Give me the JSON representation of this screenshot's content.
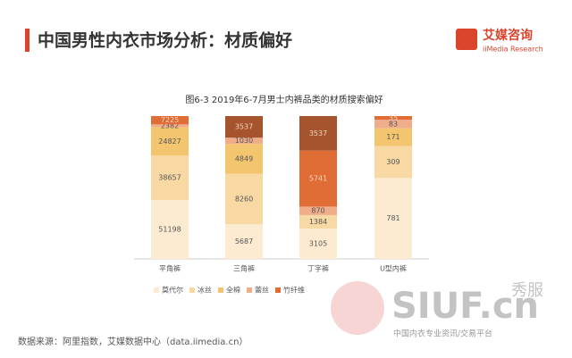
{
  "chart_data": {
    "type": "stacked_bar_percent",
    "header": "中国男性内衣市场分析：材质偏好",
    "logo": {
      "name": "艾媒咨询",
      "sub": "iiMedia Research"
    },
    "title": "图6-3 2019年6-7月男士内裤品类的材质搜索偏好",
    "categories": [
      "平角裤",
      "三角裤",
      "丁字裤",
      "U型内裤"
    ],
    "series": [
      {
        "name": "莫代尔",
        "color": "#fcebd0",
        "values": [
          51198,
          5687,
          3105,
          781
        ]
      },
      {
        "name": "冰丝",
        "color": "#f8d9a4",
        "values": [
          38657,
          8260,
          1384,
          309
        ]
      },
      {
        "name": "全棉",
        "color": "#f4c56f",
        "values": [
          24827,
          4849,
          null,
          171
        ]
      },
      {
        "name": "蕾丝",
        "color": "#f0ad8a",
        "values": [
          2382,
          1030,
          870,
          83
        ]
      },
      {
        "name": "竹纤维",
        "color": "#df6d35",
        "values": [
          7225,
          null,
          5741,
          35
        ]
      },
      {
        "color": "#a5542e",
        "values": [
          null,
          3537,
          3537,
          null
        ]
      }
    ],
    "source": "数据来源：阿里指数，艾媒数据中心（data.iimedia.cn）",
    "watermark": {
      "brand": "SIUF.cn",
      "cn": "秀服",
      "tagline": "中国内衣专业资讯/交易平台"
    }
  }
}
